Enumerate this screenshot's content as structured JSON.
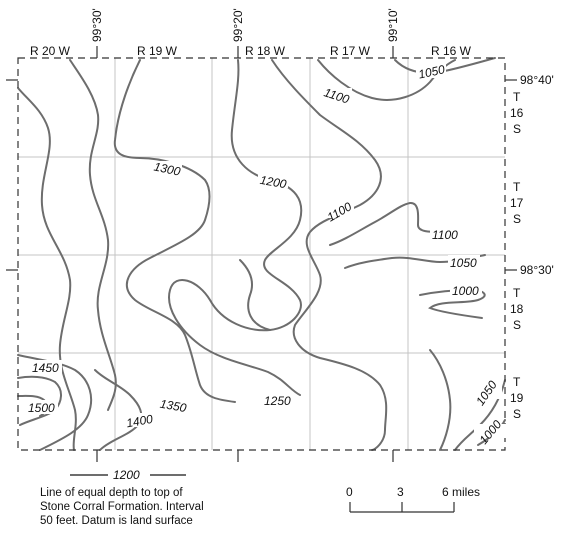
{
  "map": {
    "longitudes": [
      "99°30'",
      "99°20'",
      "99°10'"
    ],
    "latitudes": [
      "98°40'",
      "98°30'"
    ],
    "ranges": [
      "R 20 W",
      "R 19 W",
      "R 18 W",
      "R 17 W",
      "R 16 W"
    ],
    "townships": [
      {
        "t": "T",
        "n": "16",
        "s": "S"
      },
      {
        "t": "T",
        "n": "17",
        "s": "S"
      },
      {
        "t": "T",
        "n": "18",
        "s": "S"
      },
      {
        "t": "T",
        "n": "19",
        "s": "S"
      }
    ],
    "contour_labels": [
      "1050",
      "1100",
      "1300",
      "1200",
      "1100",
      "1100",
      "1050",
      "1000",
      "1450",
      "1500",
      "1350",
      "1400",
      "1250",
      "1050",
      "1000"
    ],
    "line_color": "#6d6d6d"
  },
  "legend": {
    "sample_label": "1200",
    "line1": "Line of equal depth to top of",
    "line2": "Stone Corral Formation. Interval",
    "line3": "50 feet. Datum is land surface"
  },
  "scale": {
    "ticks": [
      "0",
      "3",
      "6 miles"
    ]
  }
}
